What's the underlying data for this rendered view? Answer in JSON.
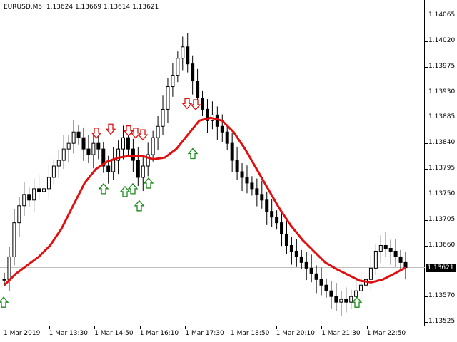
{
  "window": {
    "symbol": "EURUSD,M5",
    "ohlc": "1.13624 1.13669 1.13614 1.13621",
    "current_price": "1.13621"
  },
  "colors": {
    "background": "#ffffff",
    "candle": "#000000",
    "moving_average": "#e01010",
    "sell_arrow": "#e01010",
    "buy_arrow": "#1a8a1a",
    "current_price_line": "#c0c0c0"
  },
  "chart_data": {
    "type": "candlestick",
    "ylim": [
      1.13525,
      1.14065
    ],
    "y_ticks": [
      "1.14065",
      "1.14020",
      "1.13975",
      "1.13930",
      "1.13885",
      "1.13840",
      "1.13795",
      "1.13750",
      "1.13705",
      "1.13660",
      "1.13570",
      "1.13525"
    ],
    "x_tick_labels": [
      "1 Mar 2019",
      "1 Mar 13:30",
      "1 Mar 14:50",
      "1 Mar 16:10",
      "1 Mar 17:30",
      "1 Mar 18:50",
      "1 Mar 20:10",
      "1 Mar 21:30",
      "1 Mar 22:50"
    ],
    "close_series": [
      1.136,
      1.1364,
      1.137,
      1.1373,
      1.1375,
      1.1374,
      1.1376,
      1.13755,
      1.1376,
      1.1378,
      1.138,
      1.1381,
      1.1383,
      1.1384,
      1.1386,
      1.1385,
      1.1383,
      1.1382,
      1.1384,
      1.1383,
      1.138,
      1.1379,
      1.1381,
      1.1383,
      1.1385,
      1.1383,
      1.1381,
      1.1378,
      1.138,
      1.1382,
      1.1385,
      1.1387,
      1.139,
      1.1394,
      1.1396,
      1.1399,
      1.1401,
      1.1398,
      1.1395,
      1.1392,
      1.139,
      1.1388,
      1.1389,
      1.1387,
      1.1386,
      1.1384,
      1.1381,
      1.1379,
      1.1378,
      1.1377,
      1.1376,
      1.1375,
      1.1374,
      1.1372,
      1.1371,
      1.137,
      1.1368,
      1.1366,
      1.1365,
      1.1364,
      1.1363,
      1.1362,
      1.1361,
      1.136,
      1.1359,
      1.1358,
      1.1357,
      1.1356,
      1.13565,
      1.1356,
      1.1357,
      1.1358,
      1.1359,
      1.136,
      1.1362,
      1.1365,
      1.1366,
      1.13655,
      1.1365,
      1.1364,
      1.1363,
      1.13621
    ],
    "moving_average": [
      1.1359,
      1.1361,
      1.13625,
      1.1364,
      1.1366,
      1.1369,
      1.1373,
      1.1377,
      1.13795,
      1.13808,
      1.13815,
      1.13818,
      1.13818,
      1.13812,
      1.13815,
      1.1383,
      1.13855,
      1.1388,
      1.13885,
      1.1388,
      1.1386,
      1.1383,
      1.13795,
      1.1376,
      1.13725,
      1.13695,
      1.1367,
      1.1365,
      1.1363,
      1.13618,
      1.13608,
      1.13598,
      1.13595,
      1.136,
      1.1361,
      1.13621
    ],
    "sell_signals": [
      1.13848,
      1.13855,
      1.13852,
      1.13848,
      1.13845,
      1.139,
      1.13898
    ],
    "buy_signals": [
      1.1357,
      1.1377,
      1.13765,
      1.1377,
      1.1374,
      1.1378,
      1.13832,
      1.1357
    ],
    "current_price": 1.13621
  }
}
